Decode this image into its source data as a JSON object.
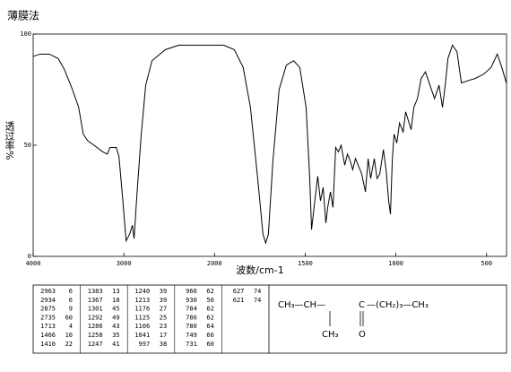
{
  "chart_data": {
    "type": "line",
    "title": "薄膜法",
    "x_label": "波数/cm-1",
    "y_label": "透过率%",
    "x_scale_break": 2000,
    "color": "#000000",
    "xlim": [
      4000,
      390
    ],
    "xticks": [
      4000,
      3000,
      2000,
      1500,
      1000,
      500
    ],
    "ylim": [
      0,
      100
    ],
    "yticks": [
      0,
      50,
      100
    ],
    "x": [
      4000,
      3921,
      3823,
      3724,
      3655,
      3576,
      3498,
      3448,
      3399,
      3330,
      3232,
      3182,
      3153,
      3084,
      3054,
      3015,
      2975,
      2936,
      2906,
      2887,
      2857,
      2808,
      2759,
      2690,
      2542,
      2394,
      2197,
      1950,
      1891,
      1842,
      1802,
      1762,
      1733,
      1718,
      1703,
      1678,
      1644,
      1604,
      1564,
      1530,
      1495,
      1475,
      1465,
      1450,
      1431,
      1416,
      1401,
      1386,
      1376,
      1361,
      1347,
      1332,
      1317,
      1302,
      1282,
      1267,
      1252,
      1238,
      1223,
      1208,
      1188,
      1168,
      1153,
      1139,
      1119,
      1104,
      1089,
      1069,
      1054,
      1040,
      1030,
      1020,
      1010,
      995,
      980,
      960,
      946,
      931,
      916,
      901,
      881,
      861,
      837,
      812,
      787,
      762,
      743,
      728,
      713,
      688,
      663,
      639,
      604,
      564,
      515,
      475,
      441,
      416,
      391
    ],
    "values": [
      90,
      91,
      91,
      89,
      84,
      76,
      67,
      55,
      52,
      50,
      47,
      46,
      49,
      49,
      45,
      27,
      7,
      10,
      14,
      8,
      27,
      55,
      77,
      88,
      93,
      95,
      95,
      95,
      93,
      85,
      67,
      35,
      10,
      6,
      10,
      43,
      75,
      86,
      88,
      85,
      67,
      35,
      12,
      23,
      36,
      25,
      31,
      15,
      22,
      29,
      22,
      49,
      47,
      50,
      41,
      46,
      43,
      39,
      44,
      41,
      37,
      29,
      44,
      35,
      44,
      35,
      37,
      48,
      39,
      25,
      19,
      43,
      55,
      51,
      60,
      56,
      65,
      61,
      57,
      67,
      71,
      80,
      83,
      77,
      71,
      77,
      67,
      77,
      89,
      95,
      92,
      78,
      79,
      80,
      82,
      85,
      91,
      85,
      78
    ]
  },
  "peak_table": {
    "columns": [
      [
        [
          2963,
          6
        ],
        [
          2934,
          6
        ],
        [
          2875,
          9
        ],
        [
          2735,
          60
        ],
        [
          1713,
          4
        ],
        [
          1466,
          10
        ],
        [
          1410,
          22
        ]
      ],
      [
        [
          1383,
          13
        ],
        [
          1367,
          18
        ],
        [
          1301,
          45
        ],
        [
          1292,
          49
        ],
        [
          1286,
          43
        ],
        [
          1258,
          35
        ],
        [
          1247,
          41
        ]
      ],
      [
        [
          1240,
          39
        ],
        [
          1213,
          39
        ],
        [
          1176,
          27
        ],
        [
          1125,
          25
        ],
        [
          1106,
          23
        ],
        [
          1041,
          17
        ],
        [
          997,
          38
        ]
      ],
      [
        [
          966,
          62
        ],
        [
          930,
          50
        ],
        [
          784,
          62
        ],
        [
          786,
          62
        ],
        [
          780,
          64
        ],
        [
          749,
          66
        ],
        [
          731,
          60
        ]
      ],
      [
        [
          627,
          74
        ],
        [
          621,
          74
        ]
      ]
    ]
  },
  "structure": {
    "left": "CH₃—CH—",
    "carbonyl": "C",
    "right": "—(CH₂)₃—CH₃",
    "branch": "CH₃",
    "oxygen": "O"
  }
}
